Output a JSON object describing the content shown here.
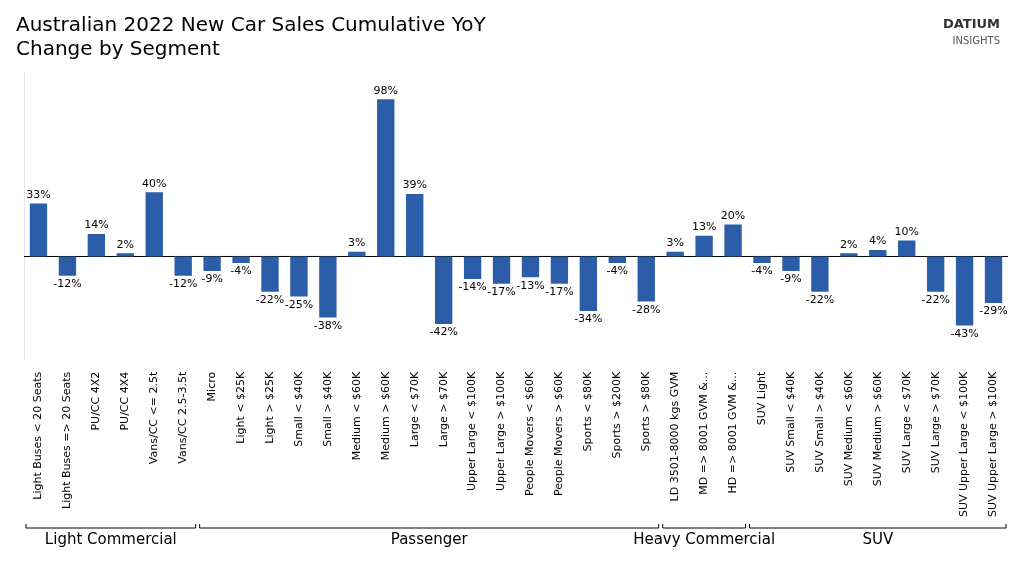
{
  "chart_data": {
    "type": "bar",
    "title": "Australian 2022 New Car Sales Cumulative YoY\nChange by Segment",
    "categories": [
      "Light Buses < 20 Seats",
      "Light Buses => 20 Seats",
      "PU/CC 4X2",
      "PU/CC 4X4",
      "Vans/CC <= 2.5t",
      "Vans/CC 2.5-3.5t",
      "Micro",
      "Light < $25K",
      "Light > $25K",
      "Small < $40K",
      "Small > $40K",
      "Medium < $60K",
      "Medium > $60K",
      "Large < $70K",
      "Large > $70K",
      "Upper Large < $100K",
      "Upper Large > $100K",
      "People Movers < $60K",
      "People Movers > $60K",
      "Sports < $80K",
      "Sports > $200K",
      "Sports > $80K",
      "LD 3501-8000 kgs GVM",
      "MD => 8001 GVM &...",
      "HD => 8001 GVM &...",
      "SUV Light",
      "SUV Small < $40K",
      "SUV Small > $40K",
      "SUV Medium < $60K",
      "SUV Medium > $60K",
      "SUV Large < $70K",
      "SUV Large > $70K",
      "SUV Upper Large < $100K",
      "SUV Upper Large > $100K"
    ],
    "values": [
      33,
      -12,
      14,
      2,
      40,
      -12,
      -9,
      -4,
      -22,
      -25,
      -38,
      3,
      98,
      39,
      -42,
      -14,
      -17,
      -13,
      -17,
      -34,
      -4,
      -28,
      3,
      13,
      20,
      -4,
      -9,
      -22,
      2,
      4,
      10,
      -22,
      -43,
      -29
    ],
    "value_labels": [
      "33%",
      "-12%",
      "14%",
      "2%",
      "40%",
      "-12%",
      "-9%",
      "-4%",
      "-22%",
      "-25%",
      "-38%",
      "3%",
      "98%",
      "39%",
      "-42%",
      "-14%",
      "-17%",
      "-13%",
      "-17%",
      "-34%",
      "-4%",
      "-28%",
      "3%",
      "13%",
      "20%",
      "-4%",
      "-9%",
      "-22%",
      "2%",
      "4%",
      "10%",
      "-22%",
      "-43%",
      "-29%"
    ],
    "data_labels": true,
    "color": "#2b5da8",
    "ylim": [
      -65,
      115
    ],
    "grid": false,
    "tick_labels": "x",
    "segments": [
      {
        "label": "Light Commercial",
        "from": 0,
        "to": 6
      },
      {
        "label": "Passenger",
        "from": 6,
        "to": 22
      },
      {
        "label": "Heavy Commercial",
        "from": 22,
        "to": 25
      },
      {
        "label": "SUV",
        "from": 25,
        "to": 34
      }
    ],
    "annotations": [
      "DATIUM",
      "INSIGHTS"
    ]
  }
}
